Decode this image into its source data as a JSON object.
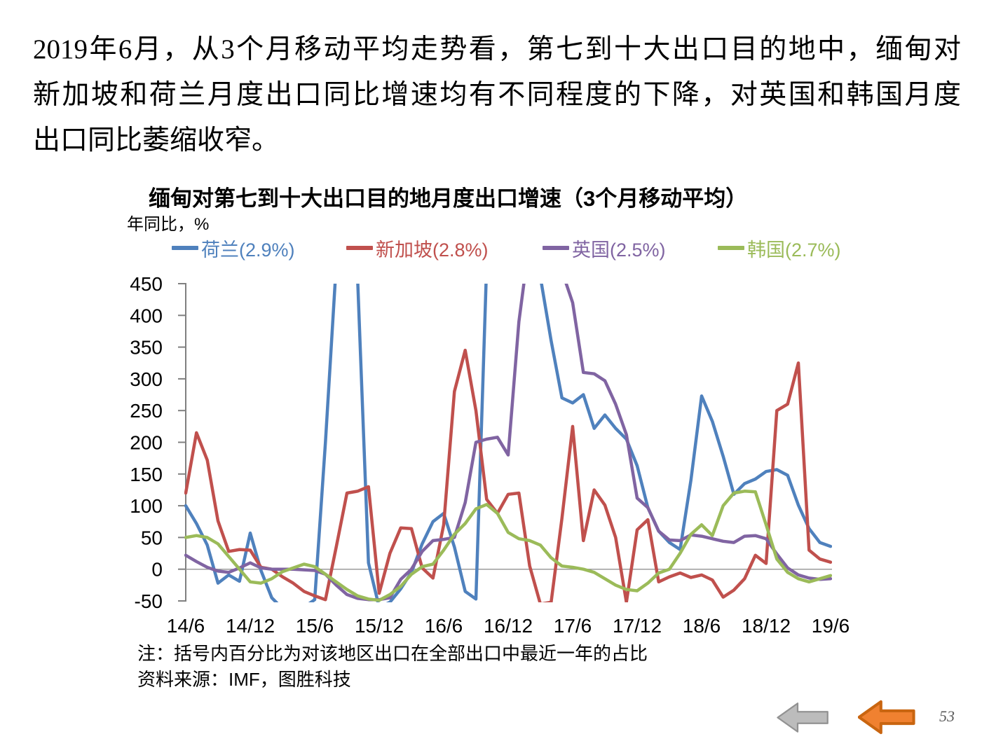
{
  "intro": {
    "lines": [
      "2019年6月，从3个月移动平均走势看，第七到十大出口目的地中，缅甸对",
      "新加坡和荷兰月度出口同比增速均有不同程度的下降，对英国和韩国月度",
      "出口同比萎缩收窄。"
    ]
  },
  "chart": {
    "title": "缅甸对第七到十大出口目的地月度出口增速（3个月移动平均）",
    "unit_label": "年同比，%",
    "note": "注：括号内百分比为对该地区出口在全部出口中最近一年的占比",
    "source": "资料来源：IMF，图胜科技"
  },
  "chart_data": {
    "type": "line",
    "title": "缅甸对第七到十大出口目的地月度出口增速（3个月移动平均）",
    "ylabel": "年同比，%",
    "xlabel": "",
    "ylim": [
      -50,
      450
    ],
    "y_ticks": [
      450,
      400,
      350,
      300,
      250,
      200,
      150,
      100,
      50,
      0,
      -50
    ],
    "x_tick_labels": [
      "14/6",
      "14/12",
      "15/6",
      "15/12",
      "16/6",
      "16/12",
      "17/6",
      "17/12",
      "18/6",
      "18/12",
      "19/6"
    ],
    "x_tick_indices": [
      0,
      6,
      12,
      18,
      24,
      30,
      36,
      42,
      48,
      54,
      60
    ],
    "n_points": 61,
    "x_start": "2014/6",
    "x_end": "2019/6",
    "legend_position": "top",
    "grid": "zero-line-only",
    "clipped_at_ylim": true,
    "axis_color": "#808080",
    "zero_line_color": "#9b9b9b",
    "series": [
      {
        "id": "netherlands",
        "name": "荷兰(2.9%)",
        "color": "#4F81BD",
        "values": [
          100,
          72,
          38,
          -22,
          -9,
          -19,
          57,
          -2,
          -45,
          -62,
          -65,
          -60,
          -48,
          200,
          480,
          520,
          455,
          10,
          -60,
          -52,
          -31,
          -5,
          40,
          75,
          88,
          35,
          -35,
          -47,
          480,
          540,
          560,
          555,
          505,
          460,
          360,
          270,
          262,
          275,
          222,
          243,
          222,
          205,
          163,
          97,
          60,
          42,
          31,
          140,
          273,
          233,
          178,
          118,
          135,
          142,
          154,
          157,
          148,
          101,
          64,
          42,
          36
        ]
      },
      {
        "id": "singapore",
        "name": "新加坡(2.8%)",
        "color": "#C0504D",
        "values": [
          120,
          215,
          172,
          76,
          28,
          31,
          30,
          3,
          0,
          -12,
          -22,
          -35,
          -42,
          -48,
          35,
          120,
          123,
          130,
          -38,
          25,
          65,
          64,
          2,
          -14,
          70,
          280,
          345,
          250,
          110,
          88,
          118,
          120,
          5,
          -55,
          -52,
          80,
          225,
          45,
          125,
          101,
          50,
          -52,
          62,
          78,
          -20,
          -12,
          -6,
          -13,
          -9,
          -17,
          -44,
          -33,
          -15,
          22,
          9,
          250,
          260,
          325,
          30,
          16,
          11
        ]
      },
      {
        "id": "uk",
        "name": "英国(2.5%)",
        "color": "#8064A2",
        "values": [
          22,
          12,
          3,
          -3,
          -5,
          2,
          10,
          2,
          0,
          0,
          0,
          -1,
          -2,
          -8,
          -25,
          -40,
          -46,
          -48,
          -48,
          -45,
          -16,
          0,
          28,
          45,
          47,
          50,
          105,
          200,
          205,
          208,
          180,
          390,
          520,
          560,
          560,
          470,
          420,
          310,
          308,
          297,
          260,
          212,
          112,
          97,
          60,
          46,
          45,
          54,
          52,
          48,
          44,
          42,
          52,
          53,
          48,
          24,
          2,
          -9,
          -14,
          -16,
          -15
        ]
      },
      {
        "id": "korea",
        "name": "韩国(2.7%)",
        "color": "#9BBB59",
        "values": [
          50,
          53,
          50,
          40,
          20,
          0,
          -20,
          -22,
          -15,
          -4,
          2,
          8,
          4,
          -8,
          -20,
          -32,
          -42,
          -47,
          -49,
          -40,
          -27,
          -8,
          4,
          8,
          30,
          55,
          72,
          95,
          102,
          88,
          58,
          48,
          45,
          38,
          18,
          5,
          3,
          0,
          -5,
          -15,
          -25,
          -32,
          -34,
          -22,
          -6,
          0,
          25,
          55,
          70,
          53,
          100,
          120,
          123,
          122,
          70,
          16,
          -5,
          -15,
          -20,
          -15,
          -10
        ]
      }
    ]
  },
  "nav": {
    "gray_arrow": {
      "fill": "#bcbcbc",
      "stroke": "#929292"
    },
    "orange_arrow": {
      "fill": "#F08130",
      "stroke": "#C96510"
    }
  },
  "footer": {
    "page_number": "53"
  }
}
